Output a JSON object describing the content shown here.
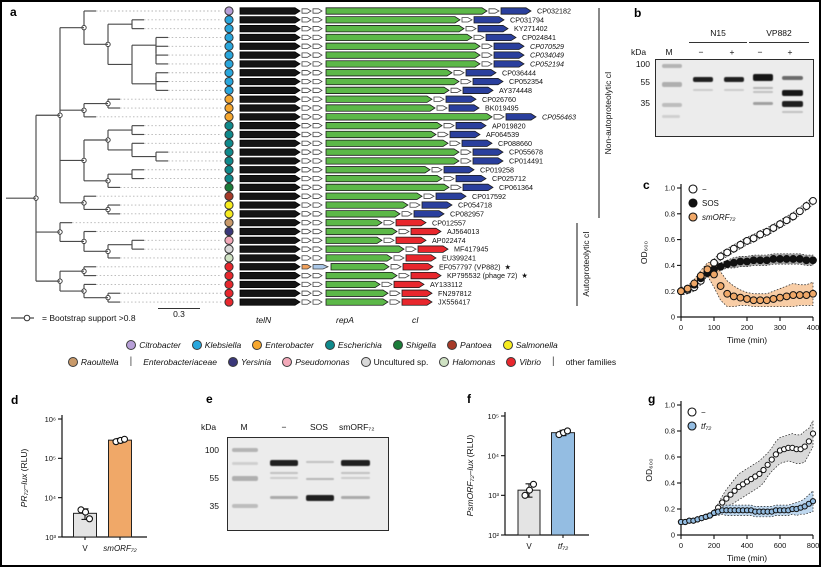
{
  "colors": {
    "tree_branch": "#4a4a4a",
    "gene_black": "#141414",
    "gene_green": "#5cb848",
    "ci_blue": "#2a3f9d",
    "ci_red": "#e8272d",
    "orange": "#f0a868",
    "bar_gray": "#e4e4e4",
    "bar_blue": "#94bde2",
    "sos_black": "#111111",
    "minus_band": "#d9d9d9",
    "vp882_pill_orange": "#f0a05a",
    "vp882_pill_blue": "#a9c7e8",
    "genus": {
      "citrobacter": "#b79fd7",
      "klebsiella": "#29a7dd",
      "enterobacter": "#f6a72f",
      "escherichia": "#0f8a8c",
      "shigella": "#1b7c39",
      "pantoea": "#a63a28",
      "salmonella": "#f7ec1f",
      "raoultella": "#c99a6a",
      "yersinia": "#3a3779",
      "pseudomonas": "#f3a9b9",
      "uncultured": "#d9d9d9",
      "halomonas": "#cfe2c3",
      "vibrio": "#e8272d"
    }
  },
  "panel_a": {
    "letter": "a",
    "group_top": "Non-autoproteolytic cI",
    "group_bottom": "Autoproteolytic cI",
    "bootstrap_note": "= Bootstrap support >0.8",
    "scale_bar": "0.3",
    "gene_labels": [
      "telN",
      "repA",
      "cI"
    ],
    "rows": [
      {
        "acc": "CP032182",
        "genus": "citrobacter",
        "ci": "blue",
        "italic": false,
        "star": false,
        "lx": 535
      },
      {
        "acc": "CP031794",
        "genus": "klebsiella",
        "ci": "blue",
        "italic": false,
        "star": false,
        "lx": 508
      },
      {
        "acc": "KY271402",
        "genus": "klebsiella",
        "ci": "blue",
        "italic": false,
        "star": false,
        "lx": 512
      },
      {
        "acc": "CP024841",
        "genus": "klebsiella",
        "ci": "blue",
        "italic": false,
        "star": false,
        "lx": 520
      },
      {
        "acc": "CP070529",
        "genus": "klebsiella",
        "ci": "blue",
        "italic": true,
        "star": false,
        "lx": 528
      },
      {
        "acc": "CP034049",
        "genus": "klebsiella",
        "ci": "blue",
        "italic": true,
        "star": false,
        "lx": 528
      },
      {
        "acc": "CP052194",
        "genus": "klebsiella",
        "ci": "blue",
        "italic": true,
        "star": false,
        "lx": 528
      },
      {
        "acc": "CP036444",
        "genus": "klebsiella",
        "ci": "blue",
        "italic": false,
        "star": false,
        "lx": 500
      },
      {
        "acc": "CP052354",
        "genus": "klebsiella",
        "ci": "blue",
        "italic": false,
        "star": false,
        "lx": 507
      },
      {
        "acc": "AY374448",
        "genus": "klebsiella",
        "ci": "blue",
        "italic": false,
        "star": false,
        "lx": 497
      },
      {
        "acc": "CP026760",
        "genus": "enterobacter",
        "ci": "blue",
        "italic": false,
        "star": false,
        "lx": 480
      },
      {
        "acc": "BK019495",
        "genus": "enterobacter",
        "ci": "blue",
        "italic": false,
        "star": false,
        "lx": 483
      },
      {
        "acc": "CP056463",
        "genus": "enterobacter",
        "ci": "blue",
        "italic": true,
        "star": false,
        "lx": 540
      },
      {
        "acc": "AP019820",
        "genus": "escherichia",
        "ci": "blue",
        "italic": false,
        "star": false,
        "lx": 490
      },
      {
        "acc": "AF064539",
        "genus": "escherichia",
        "ci": "blue",
        "italic": false,
        "star": false,
        "lx": 484
      },
      {
        "acc": "CP088660",
        "genus": "escherichia",
        "ci": "blue",
        "italic": false,
        "star": false,
        "lx": 496
      },
      {
        "acc": "CP055678",
        "genus": "escherichia",
        "ci": "blue",
        "italic": false,
        "star": false,
        "lx": 507
      },
      {
        "acc": "CP014491",
        "genus": "escherichia",
        "ci": "blue",
        "italic": false,
        "star": false,
        "lx": 507
      },
      {
        "acc": "CP019258",
        "genus": "escherichia",
        "ci": "blue",
        "italic": false,
        "star": false,
        "lx": 478
      },
      {
        "acc": "CP025712",
        "genus": "escherichia",
        "ci": "blue",
        "italic": false,
        "star": false,
        "lx": 490
      },
      {
        "acc": "CP061364",
        "genus": "shigella",
        "ci": "blue",
        "italic": false,
        "star": false,
        "lx": 497
      },
      {
        "acc": "CP017592",
        "genus": "pantoea",
        "ci": "blue",
        "italic": false,
        "star": false,
        "lx": 470
      },
      {
        "acc": "CP054718",
        "genus": "salmonella",
        "ci": "blue",
        "italic": false,
        "star": false,
        "lx": 456
      },
      {
        "acc": "CP082957",
        "genus": "salmonella",
        "ci": "blue",
        "italic": false,
        "star": false,
        "lx": 448
      },
      {
        "acc": "CP012557",
        "genus": "raoultella",
        "ci": "red",
        "italic": false,
        "star": false,
        "lx": 430
      },
      {
        "acc": "AJ564013",
        "genus": "yersinia",
        "ci": "red",
        "italic": false,
        "star": false,
        "lx": 445
      },
      {
        "acc": "AP022474",
        "genus": "pseudomonas",
        "ci": "red",
        "italic": false,
        "star": false,
        "lx": 430
      },
      {
        "acc": "MF417945",
        "genus": "uncultured",
        "ci": "red",
        "italic": false,
        "star": false,
        "lx": 452
      },
      {
        "acc": "EU399241",
        "genus": "halomonas",
        "ci": "red",
        "italic": false,
        "star": false,
        "lx": 440
      },
      {
        "acc": "EF057797 (VP882)",
        "genus": "vibrio",
        "ci": "red",
        "italic": false,
        "star": true,
        "lx": 437,
        "special": true
      },
      {
        "acc": "KP795532 (phage 72)",
        "genus": "vibrio",
        "ci": "red",
        "italic": false,
        "star": true,
        "lx": 445
      },
      {
        "acc": "AY133112",
        "genus": "vibrio",
        "ci": "red",
        "italic": false,
        "star": false,
        "lx": 428
      },
      {
        "acc": "FN297812",
        "genus": "vibrio",
        "ci": "red",
        "italic": false,
        "star": false,
        "lx": 436
      },
      {
        "acc": "JX556417",
        "genus": "vibrio",
        "ci": "red",
        "italic": false,
        "star": false,
        "lx": 436
      }
    ],
    "legend_row1": [
      {
        "t": "dot",
        "label": "Citrobacter",
        "color": "citrobacter",
        "italic": true
      },
      {
        "t": "dot",
        "label": "Klebsiella",
        "color": "klebsiella",
        "italic": true
      },
      {
        "t": "dot",
        "label": "Enterobacter",
        "color": "enterobacter",
        "italic": true
      },
      {
        "t": "dot",
        "label": "Escherichia",
        "color": "escherichia",
        "italic": true
      },
      {
        "t": "dot",
        "label": "Shigella",
        "color": "shigella",
        "italic": true
      },
      {
        "t": "dot",
        "label": "Pantoea",
        "color": "pantoea",
        "italic": true
      },
      {
        "t": "dot",
        "label": "Salmonella",
        "color": "salmonella",
        "italic": true
      }
    ],
    "legend_row2": [
      {
        "t": "dot",
        "label": "Raoultella",
        "color": "raoultella",
        "italic": true
      },
      {
        "t": "sep",
        "label": "|"
      },
      {
        "t": "text",
        "label": "Enterobacteriaceae",
        "italic": true
      },
      {
        "t": "dot",
        "label": "Yersinia",
        "color": "yersinia",
        "italic": true
      },
      {
        "t": "dot",
        "label": "Pseudomonas",
        "color": "pseudomonas",
        "italic": true
      },
      {
        "t": "dot",
        "label": "Uncultured sp.",
        "color": "uncultured",
        "italic": false
      },
      {
        "t": "dot",
        "label": "Halomonas",
        "color": "halomonas",
        "italic": true
      },
      {
        "t": "dot",
        "label": "Vibrio",
        "color": "vibrio",
        "italic": true
      },
      {
        "t": "sep",
        "label": "|"
      },
      {
        "t": "text",
        "label": "other families",
        "italic": false
      }
    ]
  },
  "panel_b": {
    "letter": "b",
    "kda": "kDa",
    "groups": [
      "N15",
      "VP882"
    ],
    "lanes": [
      "M",
      "−",
      "+",
      "−",
      "+"
    ],
    "markers": [
      "100",
      "55",
      "35"
    ]
  },
  "panel_e": {
    "letter": "e",
    "kda": "kDa",
    "lanes": [
      "M",
      "−",
      "SOS",
      "smORF₇₂"
    ],
    "markers": [
      "100",
      "55",
      "35"
    ]
  },
  "panel_letters": {
    "c": "c",
    "d": "d",
    "f": "f",
    "g": "g"
  },
  "chart_data": {
    "c": {
      "type": "line",
      "xlabel": "Time (min)",
      "ylabel": "OD₆₀₀",
      "xlim": [
        0,
        400
      ],
      "ylim": [
        0,
        1.0
      ],
      "xticks": [
        0,
        100,
        200,
        300,
        400
      ],
      "yticks": [
        0,
        0.2,
        0.4,
        0.6,
        0.8,
        1.0
      ],
      "x": [
        0,
        20,
        40,
        60,
        80,
        100,
        120,
        140,
        160,
        180,
        200,
        220,
        240,
        260,
        280,
        300,
        320,
        340,
        360,
        380,
        400
      ],
      "series": [
        {
          "name": "−",
          "italic": false,
          "fill": "#ffffff",
          "band_fill": "#dedede",
          "values": [
            0.2,
            0.21,
            0.23,
            0.28,
            0.35,
            0.42,
            0.47,
            0.5,
            0.53,
            0.56,
            0.59,
            0.61,
            0.64,
            0.66,
            0.69,
            0.72,
            0.75,
            0.78,
            0.82,
            0.86,
            0.9
          ],
          "band": [
            0.03,
            0.03,
            0.03,
            0.03,
            0.03,
            0.03,
            0.03,
            0.03,
            0.03,
            0.03,
            0.03,
            0.03,
            0.03,
            0.03,
            0.03,
            0.03,
            0.03,
            0.03,
            0.03,
            0.03,
            0.03
          ]
        },
        {
          "name": "SOS",
          "italic": false,
          "fill": "#111111",
          "band_fill": "#8a8a8a",
          "values": [
            0.2,
            0.22,
            0.25,
            0.3,
            0.34,
            0.37,
            0.39,
            0.41,
            0.42,
            0.43,
            0.43,
            0.44,
            0.44,
            0.44,
            0.45,
            0.45,
            0.45,
            0.45,
            0.45,
            0.44,
            0.44
          ],
          "band": [
            0.02,
            0.02,
            0.02,
            0.03,
            0.03,
            0.03,
            0.03,
            0.03,
            0.04,
            0.04,
            0.04,
            0.04,
            0.04,
            0.04,
            0.04,
            0.04,
            0.04,
            0.04,
            0.04,
            0.04,
            0.04
          ]
        },
        {
          "name": "smORF₇₂",
          "italic": true,
          "fill": "#f0a868",
          "band_fill": "#f5bc88",
          "values": [
            0.2,
            0.22,
            0.26,
            0.32,
            0.37,
            0.33,
            0.24,
            0.18,
            0.16,
            0.15,
            0.14,
            0.13,
            0.13,
            0.13,
            0.14,
            0.15,
            0.16,
            0.17,
            0.17,
            0.17,
            0.18
          ],
          "band": [
            0.02,
            0.02,
            0.03,
            0.04,
            0.05,
            0.1,
            0.11,
            0.1,
            0.08,
            0.06,
            0.05,
            0.05,
            0.05,
            0.05,
            0.06,
            0.07,
            0.08,
            0.09,
            0.08,
            0.08,
            0.09
          ]
        }
      ]
    },
    "d": {
      "type": "bar",
      "log": true,
      "exp_range": [
        3,
        6
      ],
      "ylabel_main": "PR₇₂–lux",
      "ylabel_unit": " (RLU)",
      "categories": [
        {
          "label": "V",
          "italic": false
        },
        {
          "label": "smORF₇₂",
          "italic": true
        }
      ],
      "values": [
        4000,
        290000
      ],
      "points": [
        [
          4900,
          4300,
          2900
        ],
        [
          265000,
          285000,
          305000
        ]
      ],
      "errors": [
        [
          2800,
          5200
        ],
        [
          250000,
          320000
        ]
      ],
      "bar_colors": [
        "#e4e4e4",
        "#f0a868"
      ]
    },
    "f": {
      "type": "bar",
      "log": true,
      "exp_range": [
        2,
        5
      ],
      "ylabel_main": "PsmORF₇₂–lux",
      "ylabel_unit": " (RLU)",
      "categories": [
        {
          "label": "V",
          "italic": false
        },
        {
          "label": "tf₇₂",
          "italic": true
        }
      ],
      "values": [
        1350,
        38000
      ],
      "points": [
        [
          1000,
          1350,
          1900
        ],
        [
          34000,
          38000,
          42000
        ]
      ],
      "errors": [
        [
          900,
          1950
        ],
        [
          32000,
          43500
        ]
      ],
      "bar_colors": [
        "#e4e4e4",
        "#94bde2"
      ]
    },
    "g": {
      "type": "line",
      "xlabel": "Time (min)",
      "ylabel": "OD₆₀₀",
      "xlim": [
        0,
        800
      ],
      "ylim": [
        0,
        1.0
      ],
      "xticks": [
        0,
        200,
        400,
        600,
        800
      ],
      "yticks": [
        0,
        0.2,
        0.4,
        0.6,
        0.8,
        1.0
      ],
      "x": [
        0,
        25,
        50,
        75,
        100,
        125,
        150,
        175,
        200,
        225,
        250,
        275,
        300,
        325,
        350,
        375,
        400,
        425,
        450,
        475,
        500,
        525,
        550,
        575,
        600,
        625,
        650,
        675,
        700,
        725,
        750,
        775,
        800
      ],
      "series": [
        {
          "name": "−",
          "italic": false,
          "fill": "#ffffff",
          "band_fill": "#cccccc",
          "values": [
            0.1,
            0.1,
            0.11,
            0.11,
            0.12,
            0.13,
            0.14,
            0.15,
            0.17,
            0.21,
            0.25,
            0.28,
            0.31,
            0.34,
            0.37,
            0.39,
            0.41,
            0.43,
            0.45,
            0.47,
            0.5,
            0.54,
            0.58,
            0.62,
            0.65,
            0.66,
            0.67,
            0.67,
            0.66,
            0.66,
            0.68,
            0.72,
            0.78
          ],
          "band": [
            0.01,
            0.01,
            0.01,
            0.01,
            0.01,
            0.01,
            0.02,
            0.02,
            0.02,
            0.03,
            0.05,
            0.07,
            0.08,
            0.09,
            0.1,
            0.1,
            0.1,
            0.1,
            0.1,
            0.1,
            0.1,
            0.09,
            0.09,
            0.1,
            0.1,
            0.1,
            0.1,
            0.11,
            0.11,
            0.11,
            0.12,
            0.1,
            0.1
          ]
        },
        {
          "name": "tf₇₂",
          "italic": true,
          "fill": "#94bde2",
          "band_fill": "#a9cbe9",
          "values": [
            0.1,
            0.1,
            0.11,
            0.11,
            0.12,
            0.13,
            0.14,
            0.15,
            0.17,
            0.18,
            0.19,
            0.19,
            0.19,
            0.19,
            0.19,
            0.19,
            0.19,
            0.19,
            0.18,
            0.18,
            0.18,
            0.18,
            0.18,
            0.19,
            0.19,
            0.19,
            0.19,
            0.2,
            0.2,
            0.21,
            0.22,
            0.24,
            0.26
          ],
          "band": [
            0.01,
            0.01,
            0.01,
            0.01,
            0.01,
            0.01,
            0.01,
            0.02,
            0.02,
            0.03,
            0.03,
            0.04,
            0.04,
            0.04,
            0.04,
            0.04,
            0.04,
            0.04,
            0.04,
            0.04,
            0.04,
            0.04,
            0.04,
            0.04,
            0.04,
            0.04,
            0.04,
            0.04,
            0.05,
            0.05,
            0.06,
            0.07,
            0.08
          ]
        }
      ]
    }
  }
}
